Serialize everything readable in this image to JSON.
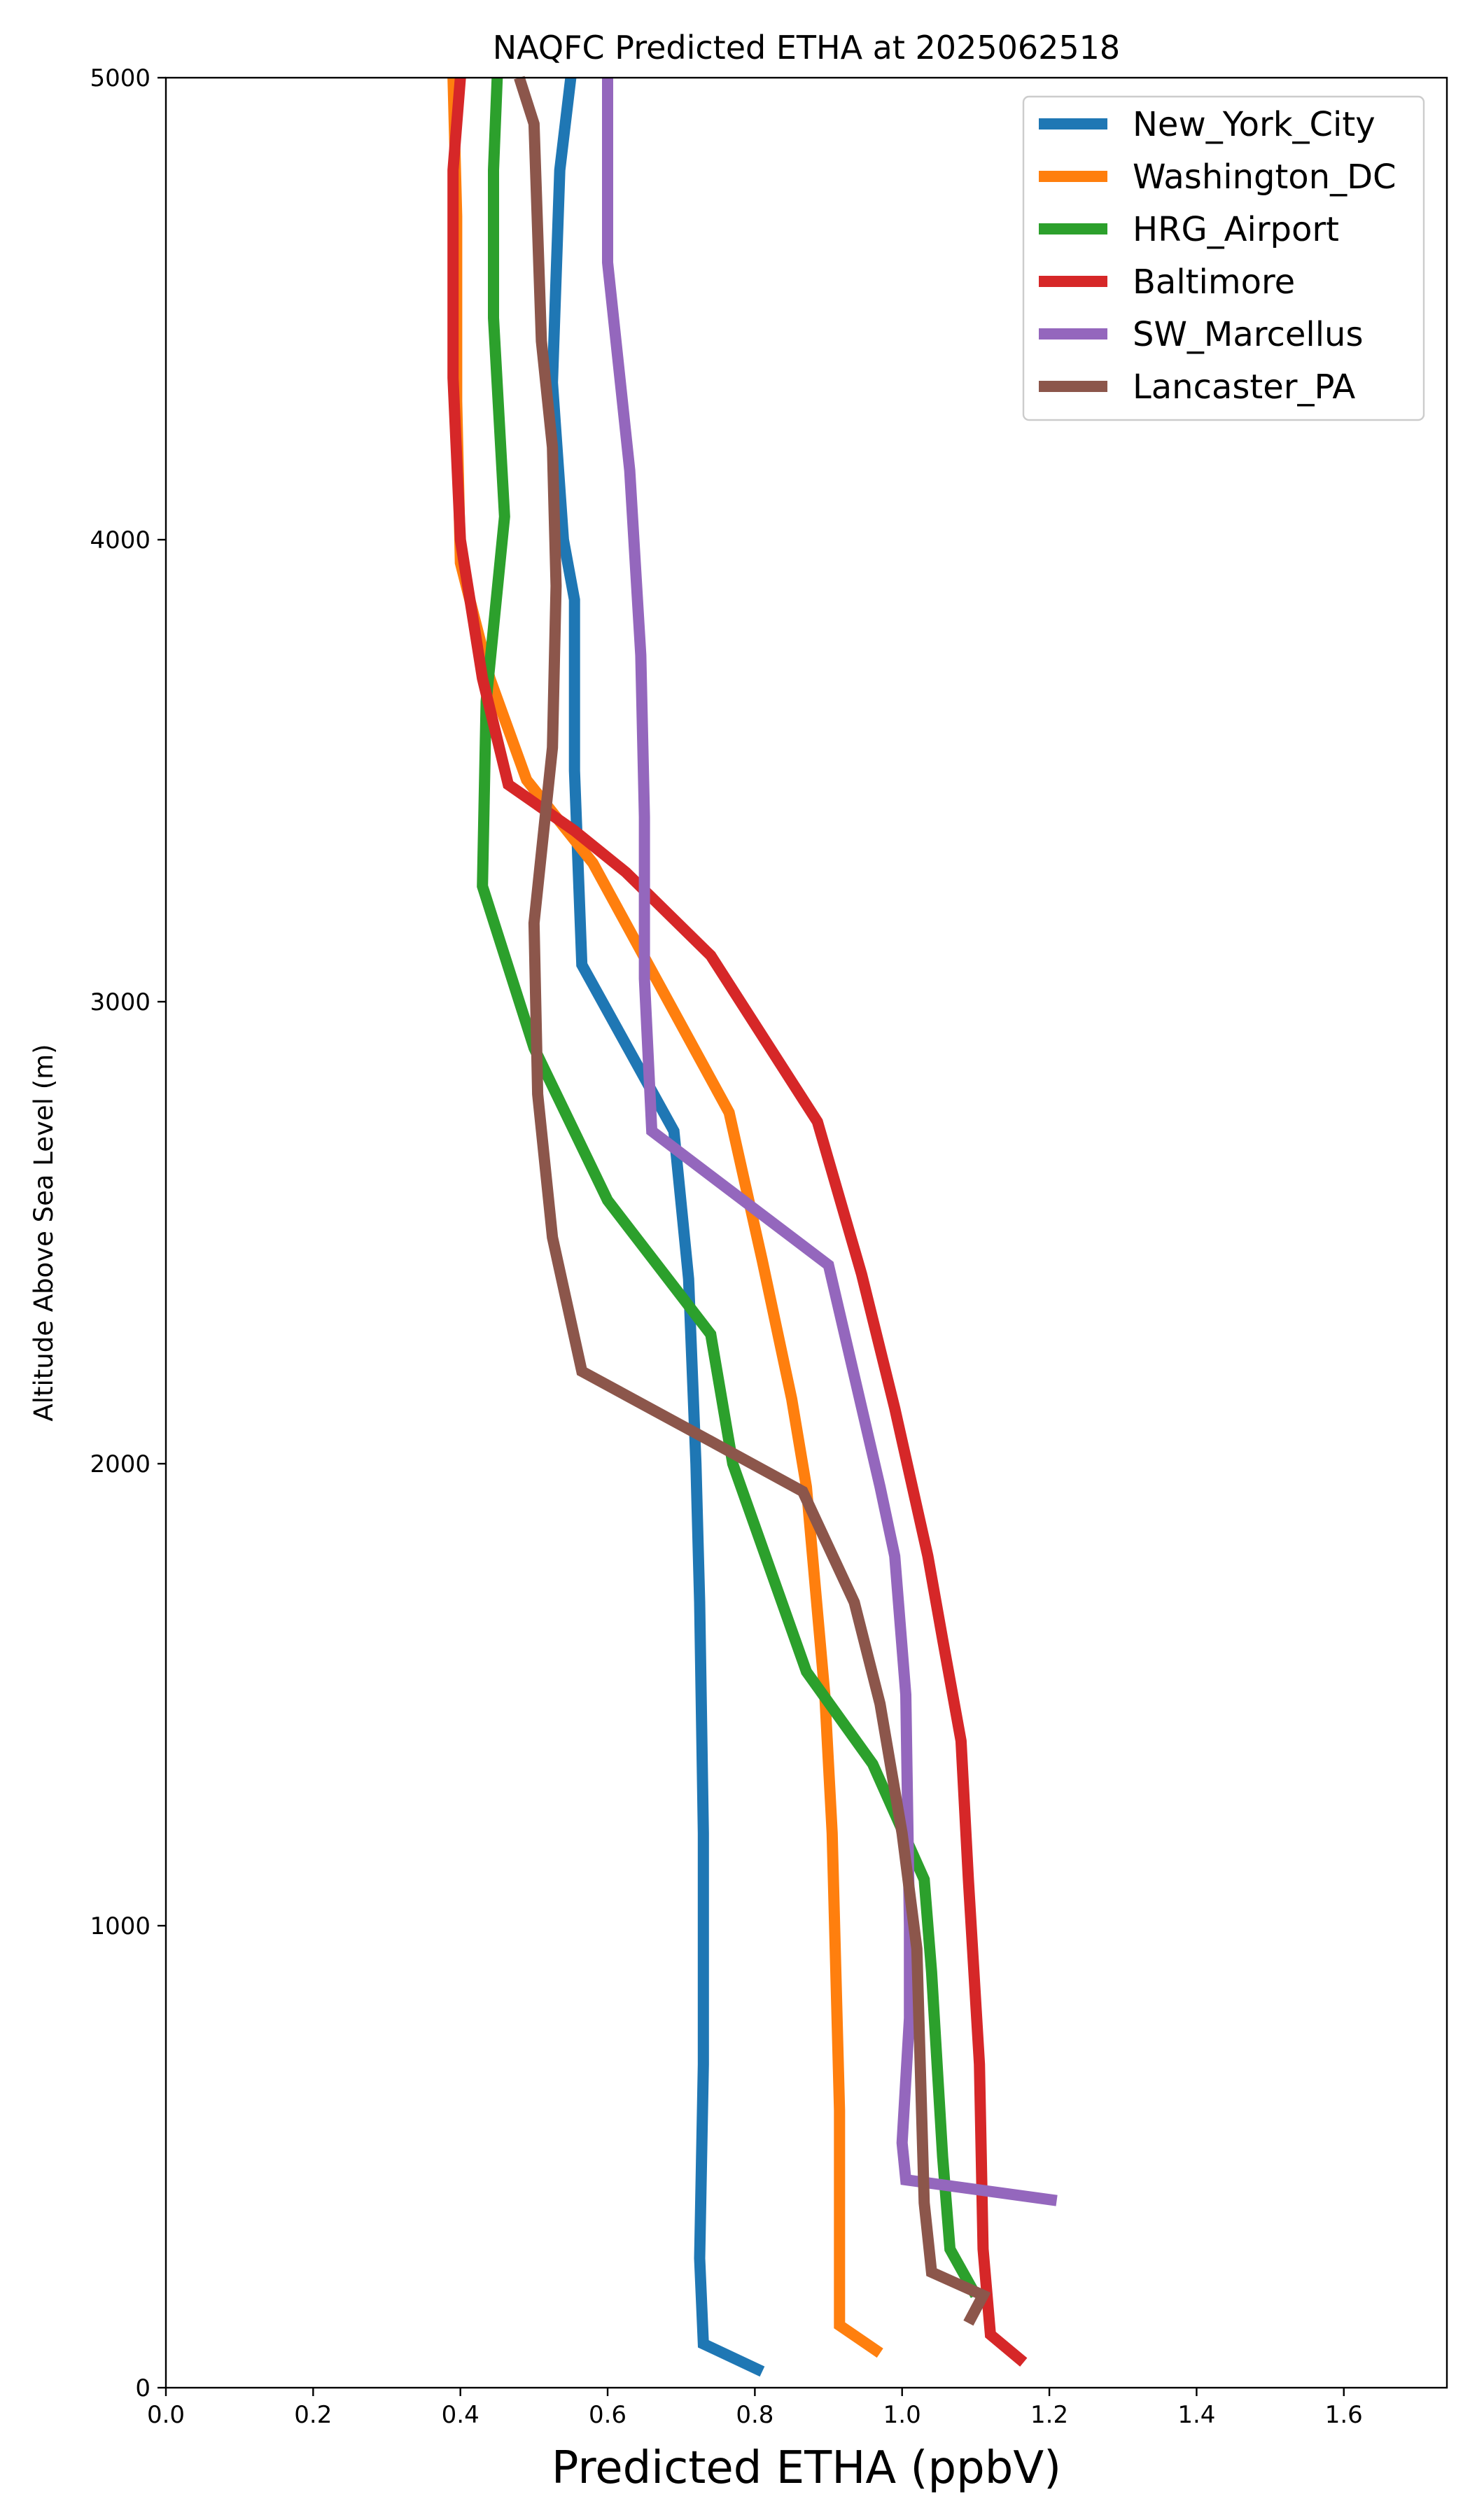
{
  "chart_data": {
    "type": "line",
    "title": "NAQFC Predicted ETHA at 2025062518",
    "xlabel": "Predicted ETHA (ppbV)",
    "ylabel": "Altitude Above Sea Level (m)",
    "xlim": [
      0.0,
      1.74
    ],
    "ylim": [
      0,
      5000
    ],
    "xticks": [
      "0.0",
      "0.2",
      "0.4",
      "0.6",
      "0.8",
      "1.0",
      "1.2",
      "1.4",
      "1.6"
    ],
    "yticks": [
      "0",
      "1000",
      "2000",
      "3000",
      "4000",
      "5000"
    ],
    "grid": false,
    "legend_position": "top-right",
    "series": [
      {
        "name": "New_York_City",
        "color": "#1f77b4",
        "points": [
          [
            0.81,
            35
          ],
          [
            0.73,
            95
          ],
          [
            0.725,
            280
          ],
          [
            0.73,
            700
          ],
          [
            0.73,
            1200
          ],
          [
            0.725,
            1700
          ],
          [
            0.72,
            2000
          ],
          [
            0.71,
            2400
          ],
          [
            0.69,
            2720
          ],
          [
            0.565,
            3080
          ],
          [
            0.555,
            3500
          ],
          [
            0.555,
            3870
          ],
          [
            0.54,
            4000
          ],
          [
            0.525,
            4340
          ],
          [
            0.535,
            4800
          ],
          [
            0.55,
            5000
          ]
        ]
      },
      {
        "name": "Washington_DC",
        "color": "#ff7f0e",
        "points": [
          [
            0.97,
            75
          ],
          [
            0.915,
            135
          ],
          [
            0.915,
            600
          ],
          [
            0.905,
            1200
          ],
          [
            0.895,
            1500
          ],
          [
            0.87,
            1950
          ],
          [
            0.85,
            2140
          ],
          [
            0.81,
            2440
          ],
          [
            0.765,
            2760
          ],
          [
            0.58,
            3300
          ],
          [
            0.49,
            3480
          ],
          [
            0.44,
            3700
          ],
          [
            0.4,
            3950
          ],
          [
            0.395,
            4300
          ],
          [
            0.395,
            4700
          ],
          [
            0.39,
            5000
          ]
        ]
      },
      {
        "name": "HRG_Airport",
        "color": "#2ca02c",
        "points": [
          [
            1.1,
            200
          ],
          [
            1.065,
            300
          ],
          [
            1.055,
            500
          ],
          [
            1.04,
            900
          ],
          [
            1.03,
            1100
          ],
          [
            0.96,
            1350
          ],
          [
            0.87,
            1550
          ],
          [
            0.77,
            2000
          ],
          [
            0.74,
            2280
          ],
          [
            0.6,
            2570
          ],
          [
            0.5,
            2900
          ],
          [
            0.43,
            3250
          ],
          [
            0.435,
            3650
          ],
          [
            0.46,
            4050
          ],
          [
            0.445,
            4480
          ],
          [
            0.445,
            4800
          ],
          [
            0.45,
            5000
          ]
        ]
      },
      {
        "name": "Baltimore",
        "color": "#d62728",
        "points": [
          [
            1.165,
            55
          ],
          [
            1.12,
            115
          ],
          [
            1.11,
            300
          ],
          [
            1.105,
            700
          ],
          [
            1.09,
            1100
          ],
          [
            1.08,
            1400
          ],
          [
            1.055,
            1620
          ],
          [
            1.035,
            1800
          ],
          [
            0.99,
            2120
          ],
          [
            0.945,
            2410
          ],
          [
            0.885,
            2740
          ],
          [
            0.74,
            3100
          ],
          [
            0.625,
            3280
          ],
          [
            0.555,
            3370
          ],
          [
            0.465,
            3470
          ],
          [
            0.43,
            3700
          ],
          [
            0.42,
            3800
          ],
          [
            0.4,
            4000
          ],
          [
            0.39,
            4350
          ],
          [
            0.39,
            4800
          ],
          [
            0.4,
            5000
          ]
        ]
      },
      {
        "name": "SW_Marcellus",
        "color": "#9467bd",
        "points": [
          [
            1.21,
            405
          ],
          [
            1.005,
            450
          ],
          [
            1.0,
            530
          ],
          [
            1.01,
            800
          ],
          [
            1.01,
            1000
          ],
          [
            1.005,
            1500
          ],
          [
            0.99,
            1800
          ],
          [
            0.97,
            1950
          ],
          [
            0.9,
            2430
          ],
          [
            0.66,
            2720
          ],
          [
            0.65,
            3050
          ],
          [
            0.65,
            3400
          ],
          [
            0.645,
            3750
          ],
          [
            0.63,
            4150
          ],
          [
            0.6,
            4600
          ],
          [
            0.6,
            4800
          ],
          [
            0.6,
            5000
          ]
        ]
      },
      {
        "name": "Lancaster_PA",
        "color": "#8c564b",
        "points": [
          [
            1.09,
            140
          ],
          [
            1.11,
            200
          ],
          [
            1.04,
            250
          ],
          [
            1.03,
            400
          ],
          [
            1.02,
            950
          ],
          [
            1.0,
            1200
          ],
          [
            0.97,
            1480
          ],
          [
            0.935,
            1700
          ],
          [
            0.865,
            1940
          ],
          [
            0.75,
            2040
          ],
          [
            0.565,
            2200
          ],
          [
            0.525,
            2490
          ],
          [
            0.505,
            2800
          ],
          [
            0.5,
            3170
          ],
          [
            0.525,
            3550
          ],
          [
            0.53,
            3900
          ],
          [
            0.525,
            4200
          ],
          [
            0.51,
            4430
          ],
          [
            0.5,
            4900
          ],
          [
            0.48,
            5000
          ]
        ]
      }
    ]
  }
}
